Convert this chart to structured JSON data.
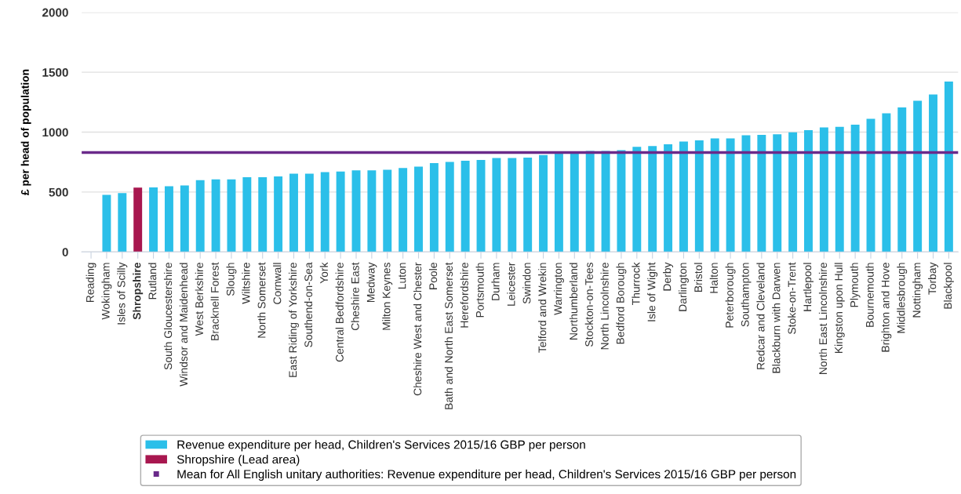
{
  "chart_data": {
    "type": "bar",
    "stacked": true,
    "ylabel": "£ per head of population",
    "categories": [
      "Reading",
      "Wokingham",
      "Isles of Scilly",
      "Shropshire",
      "Rutland",
      "South Gloucestershire",
      "Windsor and Maidenhead",
      "West Berkshire",
      "Bracknell Forest",
      "Slough",
      "Wiltshire",
      "North Somerset",
      "Cornwall",
      "East Riding of Yorkshire",
      "Southend-on-Sea",
      "York",
      "Central Bedfordshire",
      "Cheshire East",
      "Medway",
      "Milton Keynes",
      "Luton",
      "Cheshire West and Chester",
      "Poole",
      "Bath and North East Somerset",
      "Herefordshire",
      "Portsmouth",
      "Durham",
      "Leicester",
      "Swindon",
      "Telford and Wrekin",
      "Warrington",
      "Northumberland",
      "Stockton-on-Tees",
      "North Lincolnshire",
      "Bedford Borough",
      "Thurrock",
      "Isle of Wight",
      "Derby",
      "Darlington",
      "Bristol",
      "Halton",
      "Peterborough",
      "Southampton",
      "Redcar and Cleveland",
      "Blackburn with Darwen",
      "Stoke-on-Trent",
      "Hartlepool",
      "North East Lincolnshire",
      "Kingston upon Hull",
      "Plymouth",
      "Bournemouth",
      "Brighton and Hove",
      "Middlesbrough",
      "Nottingham",
      "Torbay",
      "Blackpool"
    ],
    "series": [
      {
        "name": "Revenue expenditure per head, Children's Services 2015/16 GBP per person",
        "color": "#2bbfe9",
        "values": [
          null,
          476,
          491,
          null,
          538,
          548,
          555,
          600,
          605,
          605,
          624,
          624,
          631,
          653,
          653,
          666,
          672,
          681,
          681,
          686,
          701,
          712,
          742,
          751,
          762,
          768,
          784,
          784,
          788,
          808,
          825,
          826,
          843,
          843,
          849,
          878,
          884,
          899,
          921,
          932,
          948,
          948,
          974,
          978,
          982,
          998,
          1017,
          1040,
          1044,
          1063,
          1111,
          1157,
          1207,
          1262,
          1314,
          1423
        ]
      },
      {
        "name": "Shropshire (Lead area)",
        "color": "#a8174f",
        "values": [
          null,
          null,
          null,
          537,
          null,
          null,
          null,
          null,
          null,
          null,
          null,
          null,
          null,
          null,
          null,
          null,
          null,
          null,
          null,
          null,
          null,
          null,
          null,
          null,
          null,
          null,
          null,
          null,
          null,
          null,
          null,
          null,
          null,
          null,
          null,
          null,
          null,
          null,
          null,
          null,
          null,
          null,
          null,
          null,
          null,
          null,
          null,
          null,
          null,
          null,
          null,
          null,
          null,
          null,
          null,
          null
        ]
      }
    ],
    "ref_lines": [
      {
        "axis": "y",
        "value": 830,
        "label": "Mean for All English unitary authorities: Revenue expenditure per head, Children's Services 2015/16 GBP per person",
        "color": "#6a2a8a"
      }
    ],
    "ylim": [
      0,
      2000
    ],
    "yticks": [
      0,
      500,
      1000,
      1500,
      2000
    ],
    "grid": "y",
    "legend": "bottom"
  }
}
